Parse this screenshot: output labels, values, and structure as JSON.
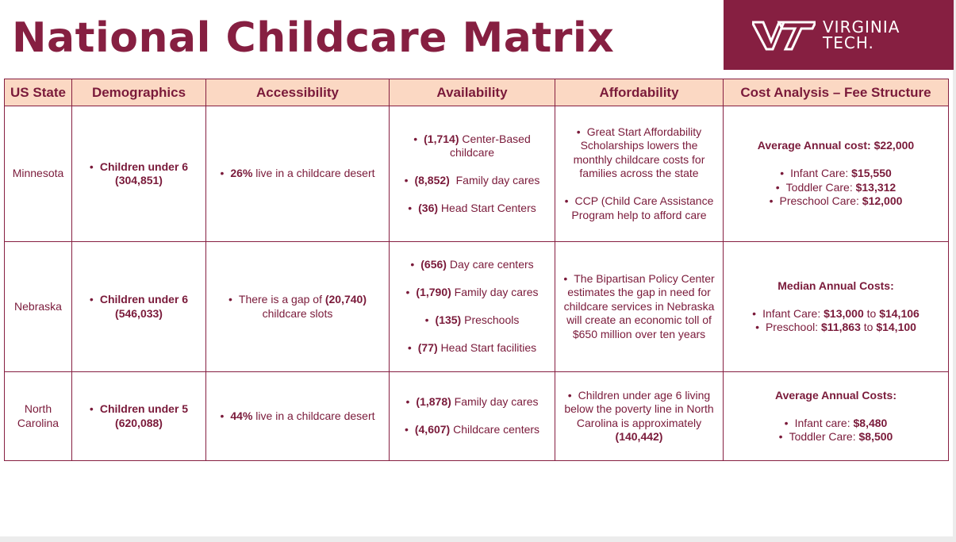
{
  "title": "National Childcare Matrix",
  "logo": {
    "line1": "VIRGINIA",
    "line2": "TECH."
  },
  "colors": {
    "maroon": "#861f41",
    "header_fill": "#fbd8c3",
    "text": "#7a1a3a"
  },
  "headers": [
    "US State",
    "Demographics",
    "Accessibility",
    "Availability",
    "Affordability",
    "Cost Analysis – Fee Structure"
  ],
  "rows": [
    {
      "state": "Minnesota",
      "demographics": "Children under 6 (304,851)",
      "accessibility": {
        "strong": "26%",
        "text": " live in a childcare desert"
      },
      "availability": [
        {
          "strong": "(1,714)",
          "text": " Center-Based childcare"
        },
        {
          "strong": "(8,852)",
          "text": "  Family day cares"
        },
        {
          "strong": "(36)",
          "text": " Head Start Centers"
        }
      ],
      "affordability": [
        "Great Start Affordability Scholarships lowers the monthly childcare costs for families across the state",
        "CCP (Child Care Assistance Program help to afford care"
      ],
      "cost": {
        "heading": "Average Annual cost: $22,000",
        "items": [
          {
            "text": "Infant Care: ",
            "strong": "$15,550"
          },
          {
            "text": "Toddler Care: ",
            "strong": "$13,312"
          },
          {
            "text": "Preschool Care: ",
            "strong": "$12,000"
          }
        ]
      }
    },
    {
      "state": "Nebraska",
      "demographics": "Children under 6 (546,033)",
      "accessibility": {
        "text": "There is a gap of ",
        "strong": "(20,740)",
        "text2": " childcare slots"
      },
      "availability": [
        {
          "strong": "(656)",
          "text": " Day care centers"
        },
        {
          "strong": "(1,790)",
          "text": " Family day cares"
        },
        {
          "strong": "(135)",
          "text": " Preschools"
        },
        {
          "strong": "(77)",
          "text": " Head Start facilities"
        }
      ],
      "affordability": [
        "The Bipartisan Policy Center estimates the gap in need for childcare services in Nebraska will create an economic toll of $650 million over ten years"
      ],
      "cost": {
        "heading": "Median Annual Costs:",
        "items": [
          {
            "text": "Infant Care: ",
            "strong": "$13,000",
            "mid": " to ",
            "strong2": "$14,106"
          },
          {
            "text": "Preschool: ",
            "strong": "$11,863",
            "mid": " to ",
            "strong2": "$14,100"
          }
        ]
      }
    },
    {
      "state": "North Carolina",
      "demographics": "Children under 5 (620,088)",
      "accessibility": {
        "strong": "44%",
        "text": " live in a childcare desert"
      },
      "availability": [
        {
          "strong": "(1,878)",
          "text": " Family day cares"
        },
        {
          "strong": "(4,607)",
          "text": " Childcare centers"
        }
      ],
      "affordability": {
        "text": "Children under age 6 living below the poverty line in North Carolina is approximately ",
        "strong": "(140,442)"
      },
      "cost": {
        "heading": "Average Annual Costs:",
        "items": [
          {
            "text": "Infant care: ",
            "strong": "$8,480"
          },
          {
            "text": "Toddler Care: ",
            "strong": "$8,500"
          }
        ]
      }
    }
  ]
}
